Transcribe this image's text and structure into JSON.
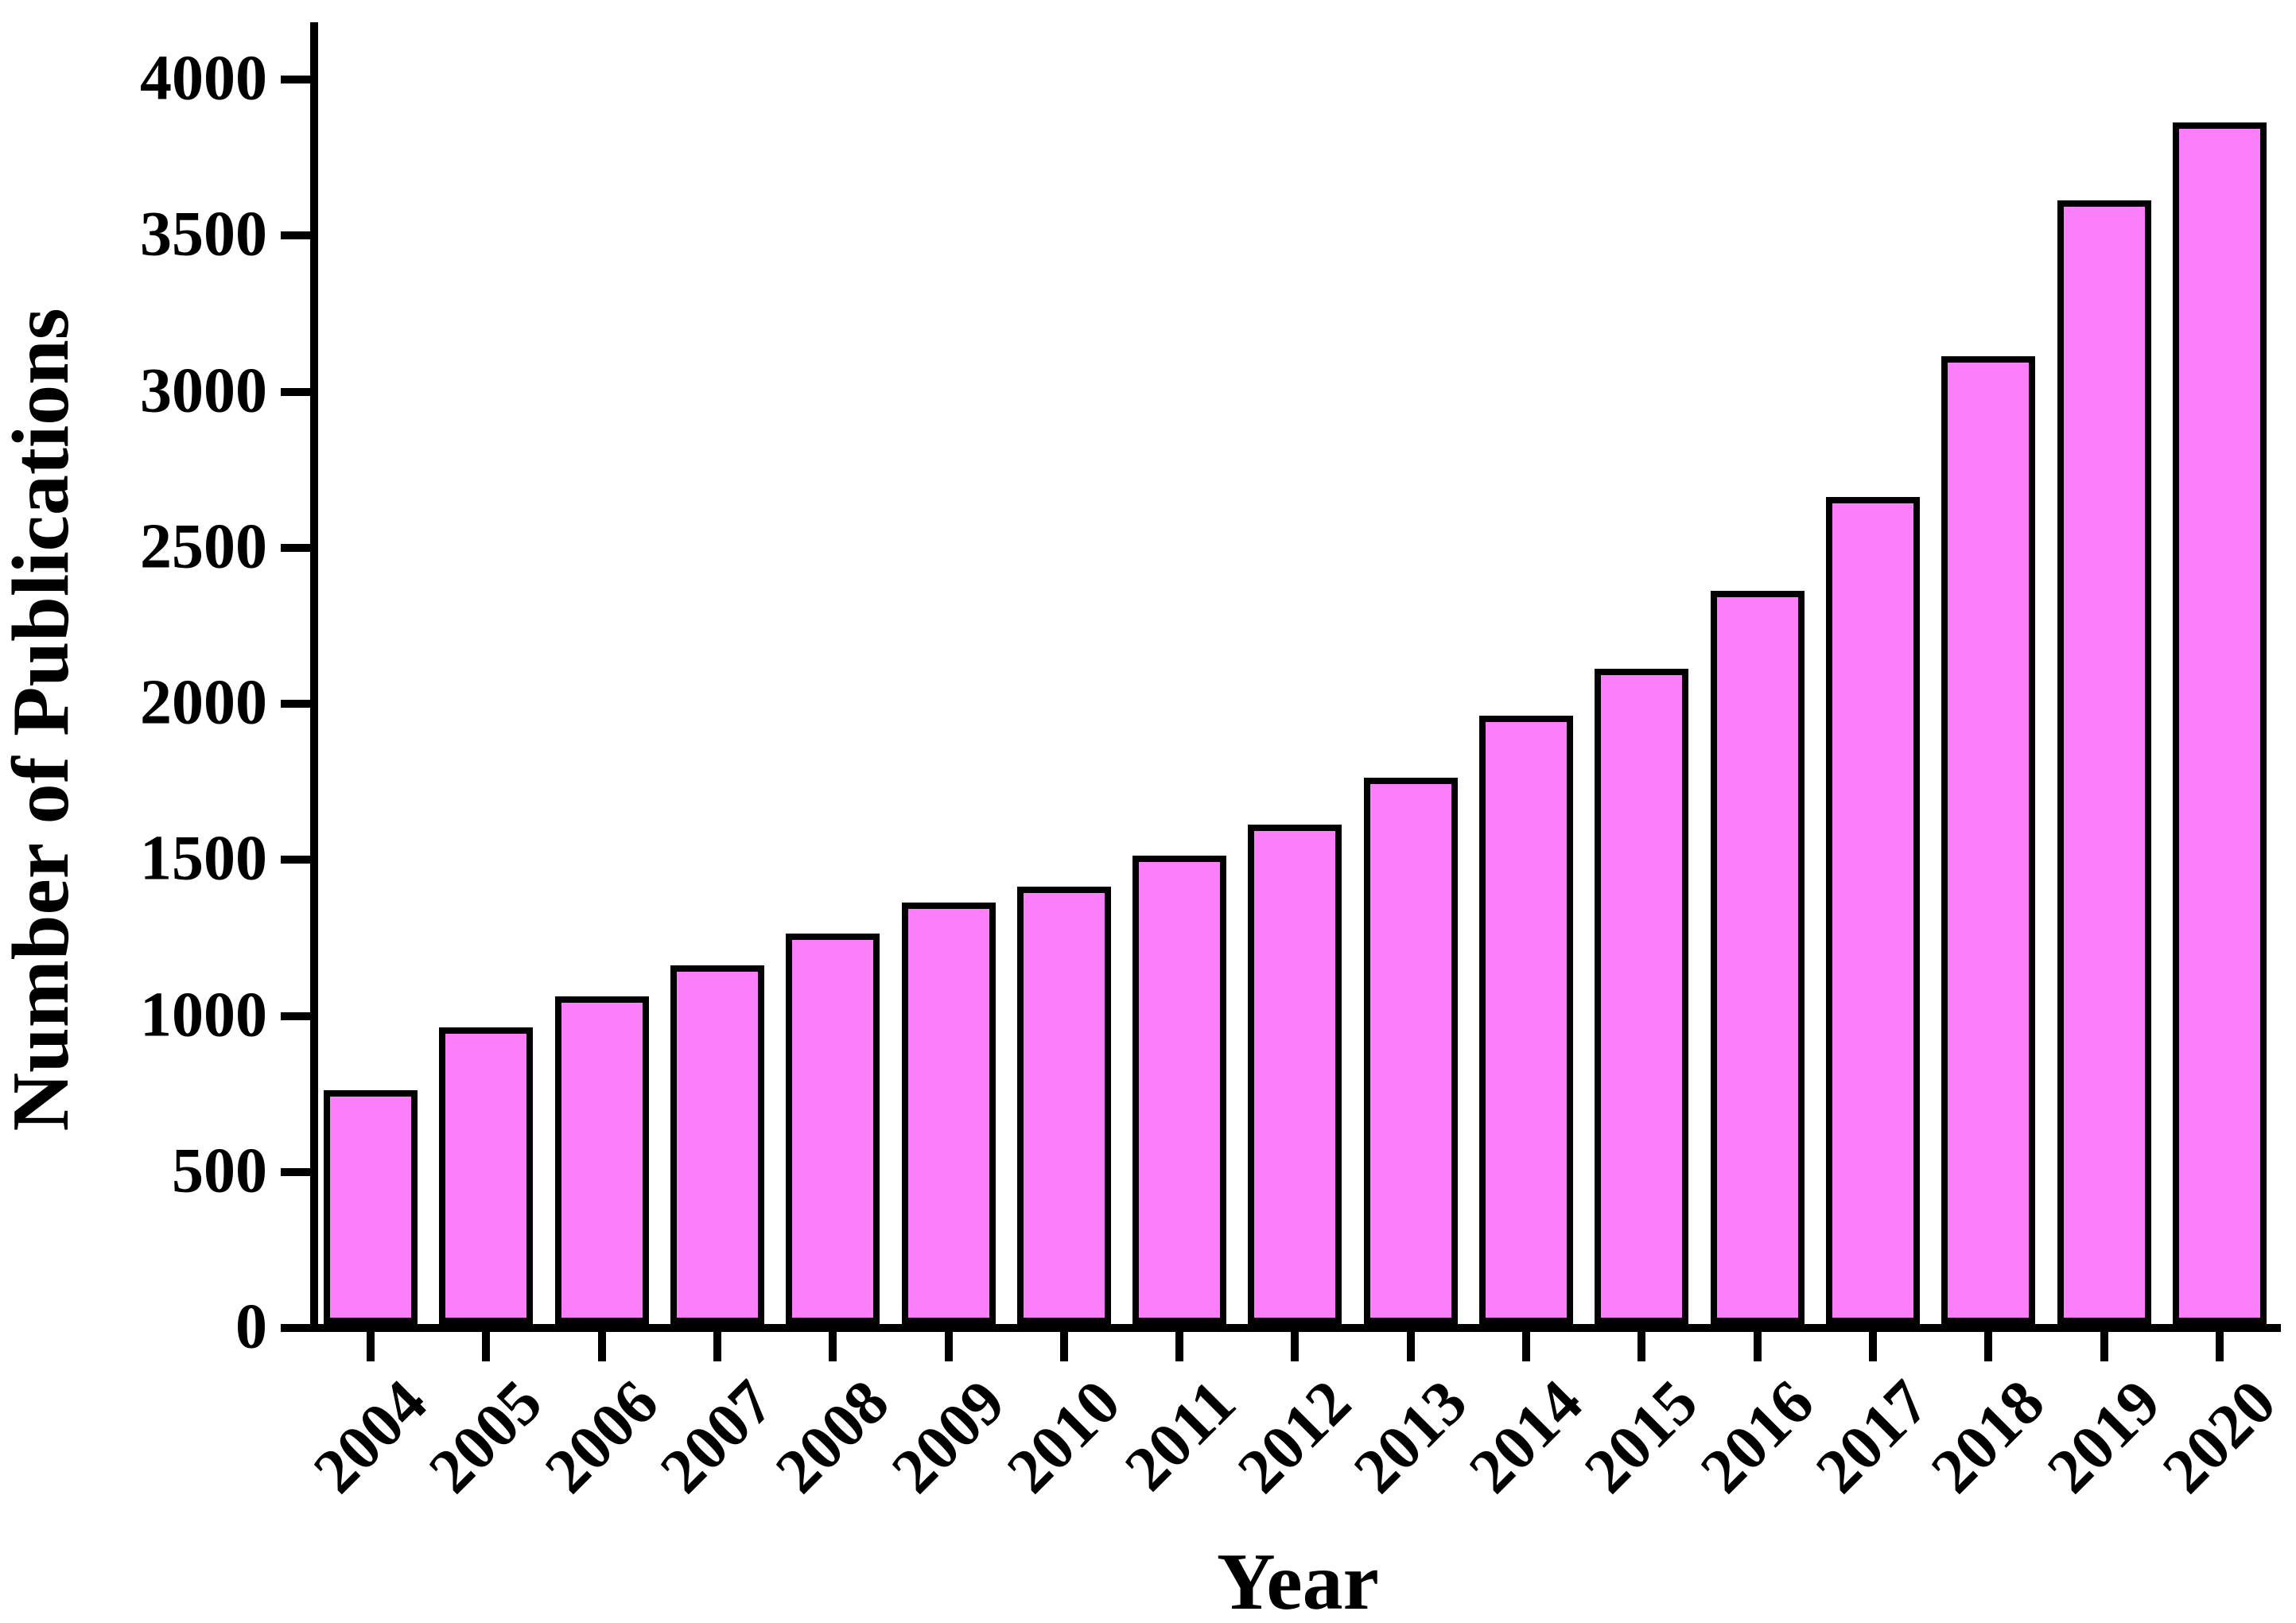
{
  "chart_data": {
    "type": "bar",
    "title": "",
    "xlabel": "Year",
    "ylabel": "Number of Publications",
    "categories": [
      "2004",
      "2005",
      "2006",
      "2007",
      "2008",
      "2009",
      "2010",
      "2011",
      "2012",
      "2013",
      "2014",
      "2015",
      "2016",
      "2017",
      "2018",
      "2019",
      "2020"
    ],
    "values": [
      750,
      950,
      1050,
      1150,
      1250,
      1350,
      1400,
      1500,
      1600,
      1750,
      1950,
      2100,
      2350,
      2650,
      3100,
      3600,
      3850
    ],
    "series": [
      {
        "name": "Number of Publications",
        "values": [
          750,
          950,
          1050,
          1150,
          1250,
          1350,
          1400,
          1500,
          1600,
          1750,
          1950,
          2100,
          2350,
          2650,
          3100,
          3600,
          3850
        ]
      }
    ],
    "ylim": [
      0,
      4000
    ],
    "yticks": [
      0,
      500,
      1000,
      1500,
      2000,
      2500,
      3000,
      3500,
      4000
    ],
    "ytick_step": 500,
    "xtick_label_rotation": 45,
    "grid": false,
    "legend": false,
    "bar_fill_color": "#FB7EFB",
    "bar_edge_color": "#000000",
    "axis_color": "#000000",
    "background_color": "#FFFFFF"
  }
}
